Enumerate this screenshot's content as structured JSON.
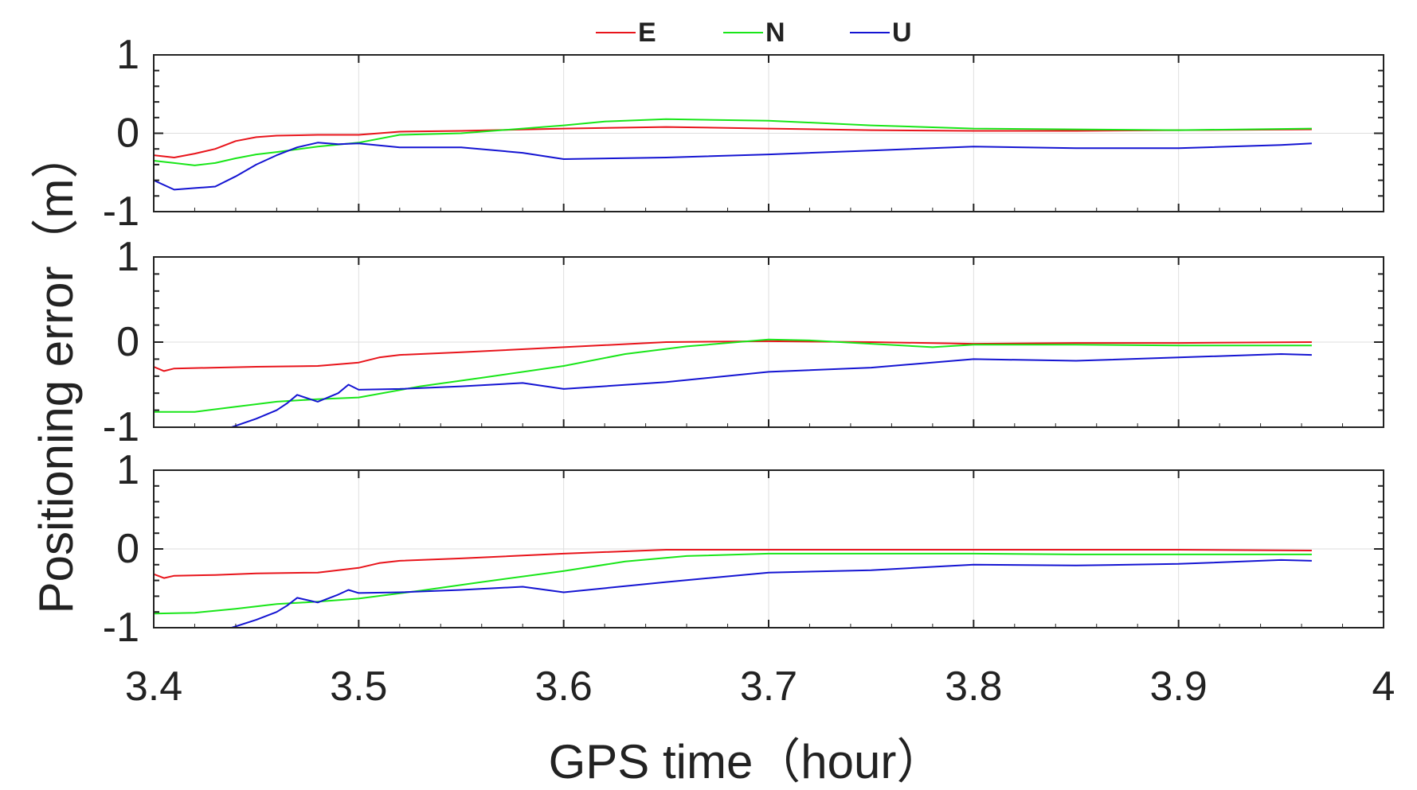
{
  "legend": [
    "E",
    "N",
    "U"
  ],
  "colors": {
    "E": "#e8141b",
    "N": "#19e619",
    "U": "#1414d2",
    "grid": "#dedede",
    "axis": "#222222"
  },
  "xlabel": "GPS time（hour）",
  "ylabel": "Positioning error（m）",
  "chart_data": [
    {
      "type": "line",
      "panel": "top",
      "xlim": [
        3.4,
        4.0
      ],
      "ylim": [
        -1,
        1
      ],
      "xticks": [
        3.4,
        3.5,
        3.6,
        3.7,
        3.8,
        3.9,
        4.0
      ],
      "yticks": [
        -1,
        0,
        1
      ],
      "ytick_labels": [
        "-1",
        "0",
        "1"
      ],
      "grid": true,
      "legend_position": "top-center",
      "series": [
        {
          "name": "E",
          "x": [
            3.4,
            3.41,
            3.42,
            3.43,
            3.44,
            3.45,
            3.46,
            3.48,
            3.5,
            3.52,
            3.55,
            3.6,
            3.65,
            3.7,
            3.75,
            3.8,
            3.85,
            3.9,
            3.965
          ],
          "y": [
            -0.28,
            -0.31,
            -0.26,
            -0.2,
            -0.1,
            -0.05,
            -0.03,
            -0.02,
            -0.02,
            0.02,
            0.03,
            0.06,
            0.08,
            0.06,
            0.04,
            0.03,
            0.03,
            0.04,
            0.05
          ]
        },
        {
          "name": "N",
          "x": [
            3.4,
            3.41,
            3.42,
            3.43,
            3.44,
            3.45,
            3.46,
            3.48,
            3.5,
            3.52,
            3.55,
            3.6,
            3.62,
            3.65,
            3.7,
            3.75,
            3.8,
            3.85,
            3.9,
            3.965
          ],
          "y": [
            -0.35,
            -0.38,
            -0.41,
            -0.38,
            -0.32,
            -0.27,
            -0.24,
            -0.17,
            -0.12,
            -0.02,
            0.0,
            0.1,
            0.15,
            0.18,
            0.16,
            0.1,
            0.06,
            0.05,
            0.04,
            0.06
          ]
        },
        {
          "name": "U",
          "x": [
            3.4,
            3.41,
            3.42,
            3.43,
            3.44,
            3.45,
            3.46,
            3.47,
            3.48,
            3.49,
            3.5,
            3.52,
            3.55,
            3.58,
            3.6,
            3.65,
            3.7,
            3.75,
            3.8,
            3.85,
            3.9,
            3.95,
            3.965
          ],
          "y": [
            -0.6,
            -0.72,
            -0.7,
            -0.68,
            -0.55,
            -0.4,
            -0.28,
            -0.18,
            -0.12,
            -0.14,
            -0.13,
            -0.18,
            -0.18,
            -0.25,
            -0.33,
            -0.31,
            -0.27,
            -0.22,
            -0.17,
            -0.19,
            -0.19,
            -0.15,
            -0.13
          ]
        }
      ]
    },
    {
      "type": "line",
      "panel": "middle",
      "xlim": [
        3.4,
        4.0
      ],
      "ylim": [
        -1,
        1
      ],
      "xticks": [
        3.4,
        3.5,
        3.6,
        3.7,
        3.8,
        3.9,
        4.0
      ],
      "yticks": [
        -1,
        0,
        1
      ],
      "ytick_labels": [
        "-1",
        "0",
        "1"
      ],
      "grid": true,
      "series": [
        {
          "name": "E",
          "x": [
            3.4,
            3.405,
            3.41,
            3.43,
            3.45,
            3.48,
            3.5,
            3.51,
            3.52,
            3.55,
            3.6,
            3.65,
            3.7,
            3.75,
            3.8,
            3.85,
            3.9,
            3.965
          ],
          "y": [
            -0.29,
            -0.34,
            -0.31,
            -0.3,
            -0.29,
            -0.28,
            -0.24,
            -0.18,
            -0.15,
            -0.12,
            -0.06,
            0.0,
            0.01,
            0.0,
            -0.02,
            -0.01,
            -0.01,
            0.0
          ]
        },
        {
          "name": "N",
          "x": [
            3.4,
            3.42,
            3.44,
            3.46,
            3.48,
            3.5,
            3.53,
            3.56,
            3.6,
            3.63,
            3.66,
            3.7,
            3.72,
            3.75,
            3.78,
            3.8,
            3.85,
            3.9,
            3.965
          ],
          "y": [
            -0.82,
            -0.82,
            -0.76,
            -0.7,
            -0.67,
            -0.65,
            -0.52,
            -0.42,
            -0.28,
            -0.14,
            -0.05,
            0.03,
            0.02,
            -0.02,
            -0.06,
            -0.03,
            -0.03,
            -0.04,
            -0.04
          ]
        },
        {
          "name": "U",
          "x": [
            3.438,
            3.45,
            3.46,
            3.465,
            3.47,
            3.48,
            3.49,
            3.495,
            3.5,
            3.52,
            3.55,
            3.58,
            3.6,
            3.65,
            3.7,
            3.75,
            3.8,
            3.85,
            3.9,
            3.95,
            3.965
          ],
          "y": [
            -1.0,
            -0.9,
            -0.8,
            -0.72,
            -0.62,
            -0.7,
            -0.6,
            -0.5,
            -0.56,
            -0.55,
            -0.52,
            -0.48,
            -0.55,
            -0.47,
            -0.35,
            -0.3,
            -0.2,
            -0.22,
            -0.18,
            -0.14,
            -0.15
          ]
        }
      ]
    },
    {
      "type": "line",
      "panel": "bottom",
      "xlim": [
        3.4,
        4.0
      ],
      "ylim": [
        -1,
        1
      ],
      "xticks": [
        3.4,
        3.5,
        3.6,
        3.7,
        3.8,
        3.9,
        4.0
      ],
      "xtick_labels": [
        "3.4",
        "3.5",
        "3.6",
        "3.7",
        "3.8",
        "3.9",
        "4"
      ],
      "yticks": [
        -1,
        0,
        1
      ],
      "ytick_labels": [
        "-1",
        "0",
        "1"
      ],
      "grid": true,
      "series": [
        {
          "name": "E",
          "x": [
            3.4,
            3.405,
            3.41,
            3.43,
            3.45,
            3.48,
            3.5,
            3.51,
            3.52,
            3.55,
            3.6,
            3.65,
            3.7,
            3.75,
            3.8,
            3.85,
            3.9,
            3.965
          ],
          "y": [
            -0.32,
            -0.37,
            -0.34,
            -0.33,
            -0.31,
            -0.3,
            -0.24,
            -0.18,
            -0.15,
            -0.12,
            -0.06,
            -0.01,
            -0.01,
            -0.01,
            -0.01,
            -0.01,
            -0.01,
            -0.02
          ]
        },
        {
          "name": "N",
          "x": [
            3.4,
            3.42,
            3.44,
            3.46,
            3.48,
            3.5,
            3.53,
            3.56,
            3.6,
            3.63,
            3.66,
            3.7,
            3.75,
            3.8,
            3.85,
            3.9,
            3.965
          ],
          "y": [
            -0.82,
            -0.81,
            -0.76,
            -0.7,
            -0.67,
            -0.63,
            -0.53,
            -0.42,
            -0.28,
            -0.16,
            -0.09,
            -0.06,
            -0.06,
            -0.06,
            -0.07,
            -0.07,
            -0.07
          ]
        },
        {
          "name": "U",
          "x": [
            3.438,
            3.45,
            3.46,
            3.465,
            3.47,
            3.48,
            3.49,
            3.495,
            3.5,
            3.52,
            3.55,
            3.58,
            3.6,
            3.65,
            3.7,
            3.75,
            3.8,
            3.85,
            3.9,
            3.95,
            3.965
          ],
          "y": [
            -1.0,
            -0.9,
            -0.8,
            -0.72,
            -0.62,
            -0.68,
            -0.58,
            -0.52,
            -0.56,
            -0.55,
            -0.52,
            -0.48,
            -0.55,
            -0.42,
            -0.3,
            -0.27,
            -0.2,
            -0.21,
            -0.19,
            -0.14,
            -0.15
          ]
        }
      ]
    }
  ]
}
